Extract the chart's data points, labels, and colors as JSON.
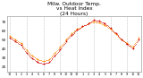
{
  "title": "Milw. Outdoor Temp.\nvs Heat Index\n(24 Hours)",
  "title_fontsize": 4.2,
  "background_color": "#ffffff",
  "plot_bg_color": "#ffffff",
  "text_color": "#000000",
  "grid_color": "#aaaaaa",
  "temp_color": "#ff8800",
  "heat_color": "#cc0000",
  "ylim": [
    14,
    76
  ],
  "yticks": [
    20,
    30,
    40,
    50,
    60,
    70
  ],
  "ytick_labels": [
    "20",
    "30",
    "40",
    "50",
    "60",
    "70"
  ],
  "ytick_fontsize": 3.0,
  "xtick_fontsize": 2.4,
  "hours": [
    0,
    1,
    2,
    3,
    4,
    5,
    6,
    7,
    8,
    9,
    10,
    11,
    12,
    13,
    14,
    15,
    16,
    17,
    18,
    19,
    20,
    21,
    22,
    23
  ],
  "temp": [
    54,
    50,
    46,
    38,
    32,
    28,
    26,
    28,
    35,
    42,
    50,
    57,
    62,
    65,
    68,
    70,
    69,
    66,
    62,
    56,
    50,
    46,
    42,
    52
  ],
  "heat": [
    52,
    48,
    44,
    35,
    29,
    25,
    23,
    25,
    32,
    39,
    48,
    55,
    61,
    65,
    68,
    72,
    71,
    68,
    63,
    57,
    50,
    45,
    40,
    50
  ],
  "xtick_labels": [
    "12",
    "1",
    "2",
    "3",
    "4",
    "5",
    "6",
    "7",
    "8",
    "9",
    "10",
    "11",
    "12",
    "1",
    "2",
    "3",
    "4",
    "5",
    "6",
    "7",
    "8",
    "9",
    "10",
    "11"
  ],
  "vgrid_positions": [
    0,
    3,
    6,
    9,
    12,
    15,
    18,
    21
  ]
}
